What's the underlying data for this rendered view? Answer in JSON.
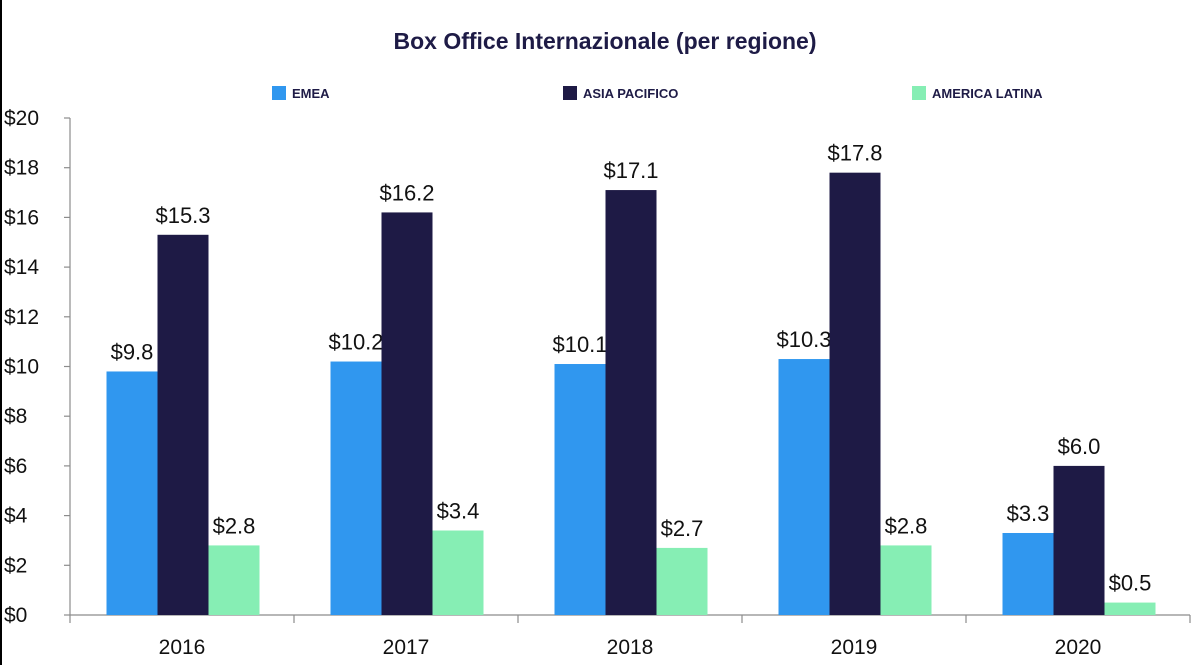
{
  "chart_data": {
    "type": "bar",
    "title": "Box Office Internazionale (per regione)",
    "xlabel": "",
    "ylabel": "",
    "categories": [
      "2016",
      "2017",
      "2018",
      "2019",
      "2020"
    ],
    "series": [
      {
        "name": "EMEA",
        "color": "#3097ef",
        "values": [
          9.8,
          10.2,
          10.1,
          10.3,
          3.3
        ]
      },
      {
        "name": "ASIA PACIFICO",
        "color": "#1e1a45",
        "values": [
          15.3,
          16.2,
          17.1,
          17.8,
          6.0
        ]
      },
      {
        "name": "AMERICA LATINA",
        "color": "#86eeb4",
        "values": [
          2.8,
          3.4,
          2.7,
          2.8,
          0.5
        ]
      }
    ],
    "value_labels": [
      [
        "$9.8",
        "$10.2",
        "$10.1",
        "$10.3",
        "$3.3"
      ],
      [
        "$15.3",
        "$16.2",
        "$17.1",
        "$17.8",
        "$6.0"
      ],
      [
        "$2.8",
        "$3.4",
        "$2.7",
        "$2.8",
        "$0.5"
      ]
    ],
    "ylim": [
      0,
      20
    ],
    "yticks": [
      0,
      2,
      4,
      6,
      8,
      10,
      12,
      14,
      16,
      18,
      20
    ],
    "ytick_labels": [
      "$0",
      "$2",
      "$4",
      "$6",
      "$8",
      "$10",
      "$12",
      "$14",
      "$16",
      "$18",
      "$20"
    ],
    "legend_position": "top",
    "grid": false
  }
}
